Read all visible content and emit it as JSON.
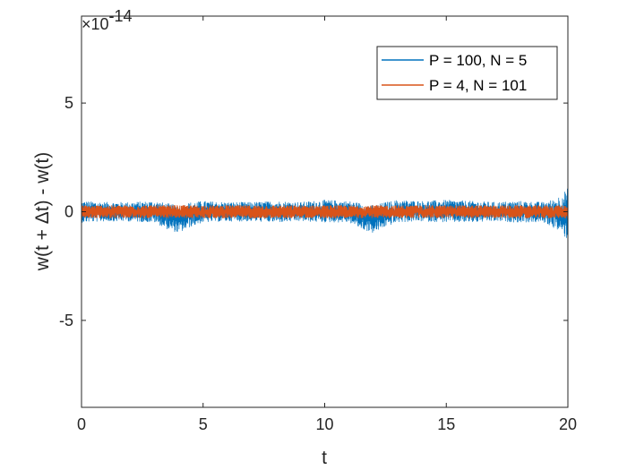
{
  "chart_data": {
    "type": "line",
    "xlabel": "t",
    "ylabel": "w(t + Δt) - w(t)",
    "xlim": [
      0,
      20
    ],
    "ylim": [
      -9e-14,
      9e-14
    ],
    "x_ticks": [
      0,
      5,
      10,
      15,
      20
    ],
    "x_tick_labels": [
      "0",
      "5",
      "10",
      "15",
      "20"
    ],
    "y_ticks": [
      -5e-14,
      0,
      5e-14
    ],
    "y_tick_labels": [
      "-5",
      "0",
      "5"
    ],
    "exponent_base": "×10",
    "exponent_power": "-14",
    "grid": false,
    "legend_position": "top-right",
    "series": [
      {
        "name": "P = 100, N = 5",
        "color": "#0072BD",
        "description_values": {
          "x": [
            0,
            1,
            2,
            3,
            3.5,
            4,
            4.5,
            5,
            6,
            7,
            8,
            9,
            10,
            11,
            11.5,
            12,
            12.5,
            13,
            14,
            15,
            16,
            17,
            18,
            19,
            19.5,
            20
          ],
          "upper": [
            5e-15,
            4.5e-15,
            4.5e-15,
            5e-15,
            4e-15,
            3e-15,
            4.5e-15,
            5e-15,
            4.5e-15,
            4.5e-15,
            5e-15,
            4.5e-15,
            5.5e-15,
            5e-15,
            4e-15,
            3e-15,
            4.5e-15,
            5.5e-15,
            5e-15,
            5.5e-15,
            5e-15,
            4.5e-15,
            5e-15,
            4.5e-15,
            6e-15,
            1.1e-14
          ],
          "lower": [
            -5e-15,
            -4.5e-15,
            -4.5e-15,
            -5e-15,
            -8e-15,
            -1e-14,
            -7e-15,
            -5e-15,
            -4.5e-15,
            -4.5e-15,
            -5e-15,
            -4.5e-15,
            -5e-15,
            -5e-15,
            -8e-15,
            -1e-14,
            -7e-15,
            -5e-15,
            -4.5e-15,
            -5e-15,
            -5e-15,
            -4.5e-15,
            -5e-15,
            -5e-15,
            -8e-15,
            -1.3e-14
          ]
        }
      },
      {
        "name": "P = 4, N = 101",
        "color": "#D95319",
        "description_values": {
          "x": [
            0,
            5,
            10,
            15,
            20
          ],
          "upper": [
            3e-15,
            3e-15,
            3e-15,
            3e-15,
            3e-15
          ],
          "lower": [
            -3e-15,
            -3e-15,
            -3e-15,
            -3e-15,
            -3e-15
          ]
        }
      }
    ]
  }
}
